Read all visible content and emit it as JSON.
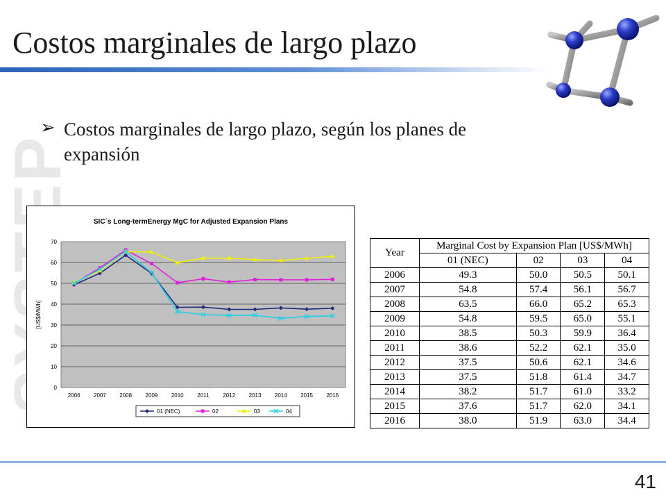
{
  "slide": {
    "title": "Costos marginales de largo plazo",
    "bullet": "Costos marginales de largo plazo, según los planes de expansión",
    "watermark": "SYSTEP",
    "page_number": "41"
  },
  "chart_data": {
    "type": "line",
    "title": "SIC´s Long-termEnergy MgC for Adjusted Expansion Plans",
    "xlabel": "",
    "ylabel": "[US$/MWh]",
    "categories": [
      "2006",
      "2007",
      "2008",
      "2009",
      "2010",
      "2011",
      "2012",
      "2013",
      "2014",
      "2015",
      "2016"
    ],
    "ylim": [
      0,
      70
    ],
    "yticks": [
      0,
      10,
      20,
      30,
      40,
      50,
      60,
      70
    ],
    "grid": true,
    "legend_position": "bottom",
    "series": [
      {
        "name": "01 (NEC)",
        "color": "#1f2a7a",
        "marker": "diamond",
        "values": [
          49.3,
          54.8,
          63.5,
          54.8,
          38.5,
          38.6,
          37.5,
          37.5,
          38.2,
          37.6,
          38.0
        ]
      },
      {
        "name": "02",
        "color": "#e020d8",
        "marker": "square",
        "values": [
          50.0,
          57.4,
          66.0,
          59.5,
          50.3,
          52.2,
          50.6,
          51.8,
          51.7,
          51.7,
          51.9
        ]
      },
      {
        "name": "03",
        "color": "#f0f000",
        "marker": "triangle",
        "values": [
          50.5,
          56.1,
          65.2,
          65.0,
          59.9,
          62.1,
          62.1,
          61.4,
          61.0,
          62.0,
          63.0
        ]
      },
      {
        "name": "04",
        "color": "#22d0e8",
        "marker": "x",
        "values": [
          50.1,
          56.7,
          65.3,
          55.1,
          36.4,
          35.0,
          34.6,
          34.7,
          33.2,
          34.1,
          34.4
        ]
      }
    ]
  },
  "table": {
    "year_header": "Year",
    "group_header": "Marginal Cost by Expansion Plan [US$/MWh]",
    "plan_headers": [
      "01 (NEC)",
      "02",
      "03",
      "04"
    ],
    "rows": [
      [
        "2006",
        "49.3",
        "50.0",
        "50.5",
        "50.1"
      ],
      [
        "2007",
        "54.8",
        "57.4",
        "56.1",
        "56.7"
      ],
      [
        "2008",
        "63.5",
        "66.0",
        "65.2",
        "65.3"
      ],
      [
        "2009",
        "54.8",
        "59.5",
        "65.0",
        "55.1"
      ],
      [
        "2010",
        "38.5",
        "50.3",
        "59.9",
        "36.4"
      ],
      [
        "2011",
        "38.6",
        "52.2",
        "62.1",
        "35.0"
      ],
      [
        "2012",
        "37.5",
        "50.6",
        "62.1",
        "34.6"
      ],
      [
        "2013",
        "37.5",
        "51.8",
        "61.4",
        "34.7"
      ],
      [
        "2014",
        "38.2",
        "51.7",
        "61.0",
        "33.2"
      ],
      [
        "2015",
        "37.6",
        "51.7",
        "62.0",
        "34.1"
      ],
      [
        "2016",
        "38.0",
        "51.9",
        "63.0",
        "34.4"
      ]
    ]
  }
}
